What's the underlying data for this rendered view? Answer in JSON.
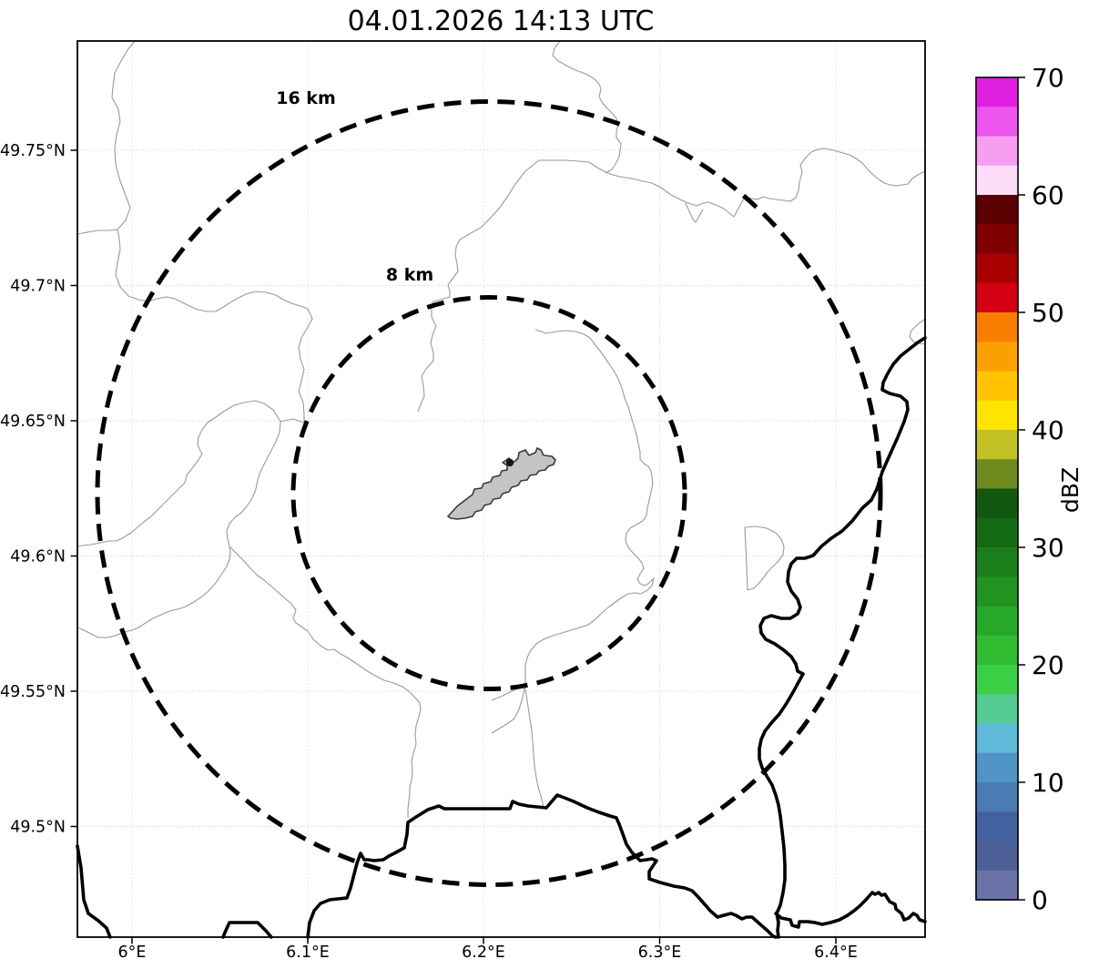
{
  "title": "04.01.2026 14:13 UTC",
  "axes": {
    "x_ticks": [
      "6°E",
      "6.1°E",
      "6.2°E",
      "6.3°E",
      "6.4°E"
    ],
    "y_ticks": [
      "49.75°N",
      "49.7°N",
      "49.65°N",
      "49.6°N",
      "49.55°N",
      "49.5°N"
    ]
  },
  "range_rings": {
    "outer": {
      "label": "16 km",
      "radius_km": 16
    },
    "inner": {
      "label": "8 km",
      "radius_km": 8
    }
  },
  "colorbar": {
    "label": "dBZ",
    "tick_labels": [
      "70",
      "60",
      "50",
      "40",
      "30",
      "20",
      "10",
      "0"
    ],
    "tick_values": [
      70,
      60,
      50,
      40,
      30,
      20,
      10,
      0
    ],
    "value_min": 0,
    "value_max": 70,
    "colors_top_to_bottom": [
      "#df1fdf",
      "#ee55ee",
      "#f79ef2",
      "#fcdcf9",
      "#5a0000",
      "#7e0000",
      "#a80000",
      "#d30011",
      "#f87e00",
      "#fba000",
      "#ffc302",
      "#ffe400",
      "#c2c124",
      "#6f8a1f",
      "#10570f",
      "#146b14",
      "#1a7f1a",
      "#219321",
      "#28a828",
      "#30bc30",
      "#3bcf46",
      "#53cb92",
      "#5fb9d9",
      "#5094c7",
      "#4a7bb5",
      "#43619e",
      "#4b5f96",
      "#6a73a8"
    ]
  },
  "map_colors": {
    "airport_fill": "#c4c4c4",
    "airport_outline": "#3a3a3a",
    "boundary_minor": "#999999",
    "boundary_major": "#000000",
    "radar_marker": "#161616"
  }
}
